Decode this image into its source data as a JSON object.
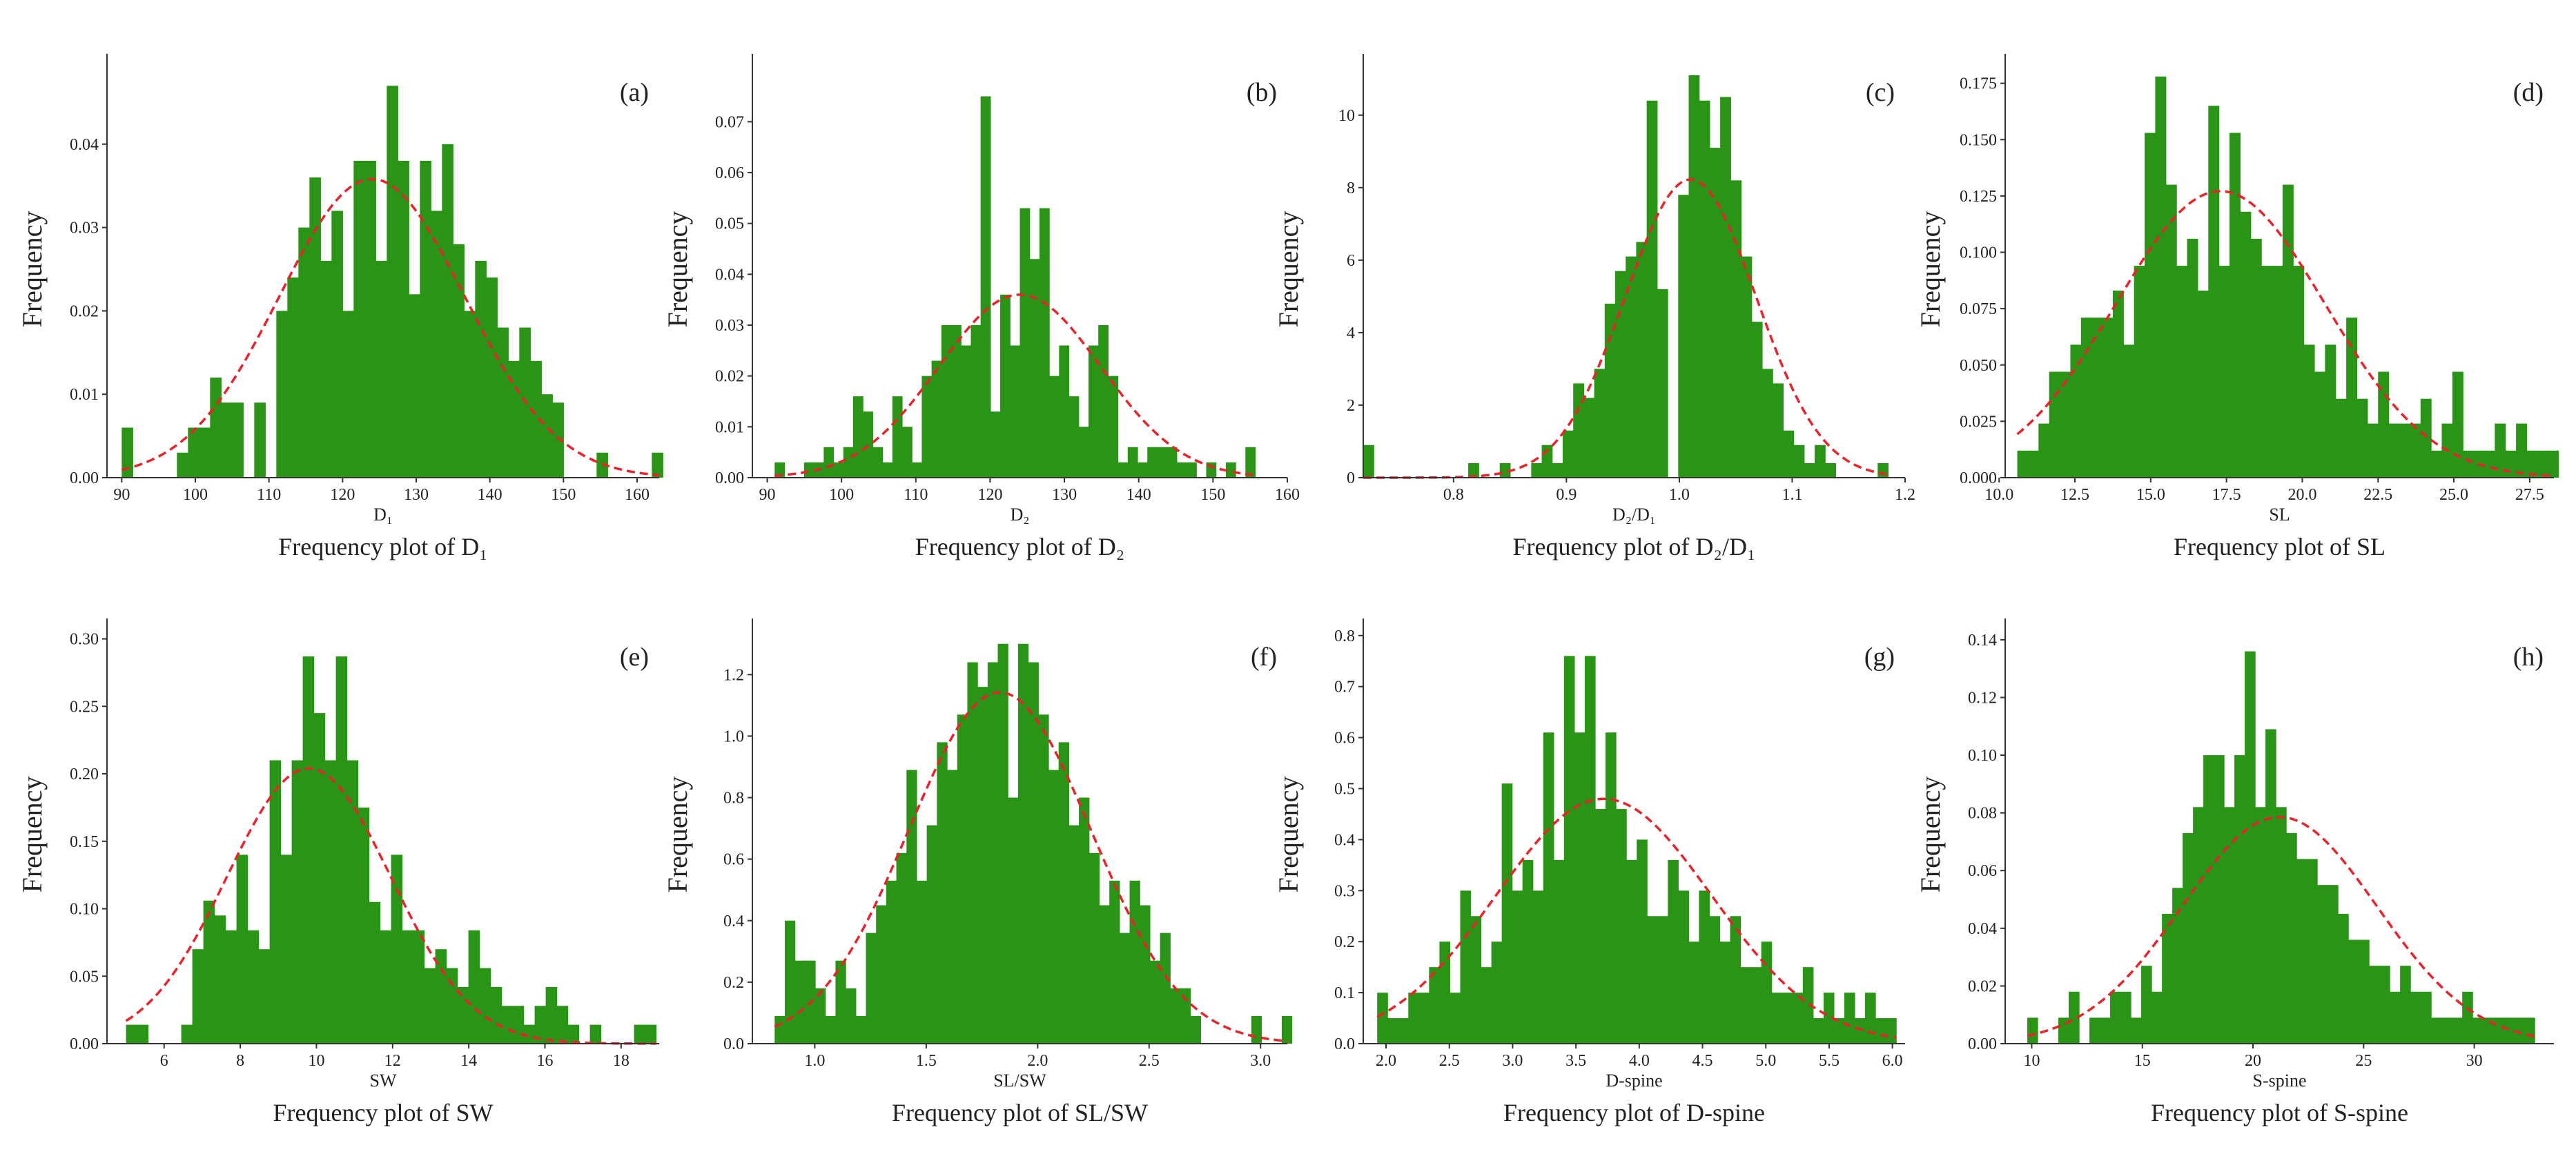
{
  "chart_data": [
    {
      "type": "bar",
      "tag": "(a)",
      "title": "Frequency plot of D₁",
      "xlabel": "D₁",
      "ylabel": "Frequency",
      "xlim": [
        88,
        163
      ],
      "ylim": [
        0,
        0.05
      ],
      "xticks": [
        "90",
        "100",
        "110",
        "120",
        "130",
        "140",
        "150",
        "160"
      ],
      "xtick_values": [
        90,
        100,
        110,
        120,
        130,
        140,
        150,
        160
      ],
      "yticks": [
        "0.00",
        "0.01",
        "0.02",
        "0.03",
        "0.04"
      ],
      "ytick_values": [
        0,
        0.01,
        0.02,
        0.03,
        0.04
      ],
      "bins": {
        "start": 90,
        "width": 1.5
      },
      "values": [
        0.006,
        0,
        0,
        0,
        0,
        0.003,
        0.006,
        0.006,
        0.012,
        0.009,
        0.009,
        0,
        0.009,
        0,
        0.02,
        0.024,
        0.03,
        0.036,
        0.026,
        0.032,
        0.02,
        0.038,
        0.038,
        0.026,
        0.047,
        0.038,
        0.022,
        0.038,
        0.032,
        0.04,
        0.028,
        0.02,
        0.026,
        0.024,
        0.018,
        0.014,
        0.018,
        0.014,
        0.01,
        0.009,
        0,
        0,
        0,
        0.003,
        0,
        0,
        0,
        0,
        0.003
      ],
      "fit": {
        "mu": 124.0,
        "sigma": 12.6
      }
    },
    {
      "type": "bar",
      "tag": "(b)",
      "title": "Frequency plot of D₂",
      "xlabel": "D₂",
      "ylabel": "Frequency",
      "xlim": [
        88,
        160
      ],
      "ylim": [
        0,
        0.082
      ],
      "xticks": [
        "90",
        "100",
        "110",
        "120",
        "130",
        "140",
        "150",
        "160"
      ],
      "xtick_values": [
        90,
        100,
        110,
        120,
        130,
        140,
        150,
        160
      ],
      "yticks": [
        "0.00",
        "0.01",
        "0.02",
        "0.03",
        "0.04",
        "0.05",
        "0.06",
        "0.07"
      ],
      "ytick_values": [
        0,
        0.01,
        0.02,
        0.03,
        0.04,
        0.05,
        0.06,
        0.07
      ],
      "bins": {
        "start": 91,
        "width": 1.32
      },
      "values": [
        0.003,
        0,
        0,
        0.003,
        0.003,
        0.006,
        0.003,
        0.006,
        0.016,
        0.013,
        0.006,
        0.003,
        0.016,
        0.01,
        0.003,
        0.02,
        0.023,
        0.03,
        0.03,
        0.026,
        0.03,
        0.075,
        0.013,
        0.036,
        0.026,
        0.053,
        0.043,
        0.053,
        0.02,
        0.026,
        0.016,
        0.01,
        0.026,
        0.03,
        0.02,
        0.003,
        0.006,
        0.003,
        0.006,
        0.006,
        0.006,
        0.003,
        0.003,
        0,
        0.003,
        0,
        0.003,
        0,
        0.006
      ],
      "fit": {
        "mu": 124.0,
        "sigma": 10.9
      }
    },
    {
      "type": "bar",
      "tag": "(c)",
      "title": "Frequency plot of D₂/D₁",
      "xlabel": "D₂/D₁",
      "ylabel": "Frequency",
      "xlim": [
        0.72,
        1.2
      ],
      "ylim": [
        0,
        11.5
      ],
      "xticks": [
        "0.8",
        "0.9",
        "1.0",
        "1.1",
        "1.2"
      ],
      "xtick_values": [
        0.8,
        0.9,
        1.0,
        1.1,
        1.2
      ],
      "yticks": [
        "0",
        "2",
        "4",
        "6",
        "8",
        "10"
      ],
      "ytick_values": [
        0,
        2,
        4,
        6,
        8,
        10
      ],
      "bins": {
        "start": 0.72,
        "width": 0.0093
      },
      "values": [
        0.9,
        0,
        0,
        0,
        0,
        0,
        0,
        0,
        0,
        0,
        0.4,
        0,
        0,
        0.4,
        0,
        0,
        0.4,
        0.9,
        0.4,
        1.3,
        2.6,
        2.2,
        3.0,
        4.8,
        5.7,
        6.1,
        6.5,
        10.4,
        5.2,
        0,
        7.8,
        11.1,
        10.4,
        9.1,
        10.5,
        8.2,
        6.1,
        4.3,
        3.0,
        2.6,
        1.3,
        0.9,
        0.4,
        0.9,
        0.4,
        0,
        0,
        0,
        0,
        0.4
      ],
      "fit": {
        "mu": 1.01,
        "sigma": 0.058
      }
    },
    {
      "type": "bar",
      "tag": "(d)",
      "title": "Frequency plot of SL",
      "xlabel": "SL",
      "ylabel": "Frequency",
      "xlim": [
        10.2,
        28.3
      ],
      "ylim": [
        0,
        0.185
      ],
      "xticks": [
        "10.0",
        "12.5",
        "15.0",
        "17.5",
        "20.0",
        "22.5",
        "25.0",
        "27.5"
      ],
      "xtick_values": [
        10.0,
        12.5,
        15.0,
        17.5,
        20.0,
        22.5,
        25.0,
        27.5
      ],
      "yticks": [
        "0.000",
        "0.025",
        "0.050",
        "0.075",
        "0.100",
        "0.125",
        "0.150",
        "0.175"
      ],
      "ytick_values": [
        0,
        0.025,
        0.05,
        0.075,
        0.1,
        0.125,
        0.15,
        0.175
      ],
      "bins": {
        "start": 10.6,
        "width": 0.35
      },
      "values": [
        0.012,
        0.012,
        0.024,
        0.047,
        0.047,
        0.059,
        0.071,
        0.071,
        0.071,
        0.083,
        0.059,
        0.094,
        0.153,
        0.178,
        0.13,
        0.094,
        0.106,
        0.083,
        0.165,
        0.094,
        0.153,
        0.118,
        0.106,
        0.094,
        0.094,
        0.13,
        0.094,
        0.059,
        0.047,
        0.059,
        0.035,
        0.071,
        0.035,
        0.024,
        0.047,
        0.024,
        0.024,
        0.024,
        0.035,
        0.012,
        0.024,
        0.047,
        0.012,
        0.012,
        0.012,
        0.024,
        0.012,
        0.024,
        0.012,
        0.012,
        0.012
      ],
      "fit": {
        "mu": 17.3,
        "sigma": 3.45
      }
    },
    {
      "type": "bar",
      "tag": "(e)",
      "title": "Frequency plot of SW",
      "xlabel": "SW",
      "ylabel": "Frequency",
      "xlim": [
        4.5,
        19.0
      ],
      "ylim": [
        0,
        0.31
      ],
      "xticks": [
        "6",
        "8",
        "10",
        "12",
        "14",
        "16",
        "18"
      ],
      "xtick_values": [
        6,
        8,
        10,
        12,
        14,
        16,
        18
      ],
      "yticks": [
        "0.00",
        "0.05",
        "0.10",
        "0.15",
        "0.20",
        "0.25",
        "0.30"
      ],
      "ytick_values": [
        0,
        0.05,
        0.1,
        0.15,
        0.2,
        0.25,
        0.3
      ],
      "bins": {
        "start": 5.0,
        "width": 0.29
      },
      "values": [
        0.014,
        0.014,
        0,
        0,
        0,
        0.014,
        0.07,
        0.106,
        0.095,
        0.084,
        0.14,
        0.084,
        0.07,
        0.21,
        0.14,
        0.21,
        0.287,
        0.245,
        0.21,
        0.287,
        0.21,
        0.175,
        0.105,
        0.084,
        0.14,
        0.084,
        0.084,
        0.056,
        0.07,
        0.056,
        0.042,
        0.084,
        0.056,
        0.042,
        0.028,
        0.028,
        0.014,
        0.028,
        0.042,
        0.028,
        0.014,
        0,
        0.014,
        0,
        0,
        0,
        0.014,
        0.014
      ],
      "fit": {
        "mu": 9.8,
        "sigma": 2.15
      }
    },
    {
      "type": "bar",
      "tag": "(f)",
      "title": "Frequency plot of SL/SW",
      "xlabel": "SL/SW",
      "ylabel": "Frequency",
      "xlim": [
        0.72,
        3.12
      ],
      "ylim": [
        0,
        1.36
      ],
      "xticks": [
        "1.0",
        "1.5",
        "2.0",
        "2.5",
        "3.0"
      ],
      "xtick_values": [
        1.0,
        1.5,
        2.0,
        2.5,
        3.0
      ],
      "yticks": [
        "0.0",
        "0.2",
        "0.4",
        "0.6",
        "0.8",
        "1.0",
        "1.2"
      ],
      "ytick_values": [
        0,
        0.2,
        0.4,
        0.6,
        0.8,
        1.0,
        1.2
      ],
      "bins": {
        "start": 0.82,
        "width": 0.0455
      },
      "values": [
        0.09,
        0.4,
        0.27,
        0.27,
        0.18,
        0.09,
        0.27,
        0.18,
        0.09,
        0.36,
        0.45,
        0.53,
        0.62,
        0.89,
        0.53,
        0.71,
        0.98,
        0.89,
        1.07,
        1.24,
        1.16,
        1.24,
        1.3,
        0.8,
        1.3,
        1.24,
        1.07,
        0.89,
        0.98,
        0.71,
        0.8,
        0.62,
        0.45,
        0.53,
        0.36,
        0.53,
        0.45,
        0.27,
        0.36,
        0.18,
        0.18,
        0.09,
        0,
        0,
        0,
        0,
        0,
        0.09,
        0,
        0,
        0.09
      ],
      "fit": {
        "mu": 1.83,
        "sigma": 0.41
      }
    },
    {
      "type": "bar",
      "tag": "(g)",
      "title": "Frequency plot of D-spine",
      "xlabel": "D-spine",
      "ylabel": "Frequency",
      "xlim": [
        1.82,
        6.1
      ],
      "ylim": [
        0,
        0.82
      ],
      "xticks": [
        "2.0",
        "2.5",
        "3.0",
        "3.5",
        "4.0",
        "4.5",
        "5.0",
        "5.5",
        "6.0"
      ],
      "xtick_values": [
        2.0,
        2.5,
        3.0,
        3.5,
        4.0,
        4.5,
        5.0,
        5.5,
        6.0
      ],
      "yticks": [
        "0.0",
        "0.1",
        "0.2",
        "0.3",
        "0.4",
        "0.5",
        "0.6",
        "0.7",
        "0.8"
      ],
      "ytick_values": [
        0,
        0.1,
        0.2,
        0.3,
        0.4,
        0.5,
        0.6,
        0.7,
        0.8
      ],
      "bins": {
        "start": 1.93,
        "width": 0.082
      },
      "values": [
        0.1,
        0.05,
        0.05,
        0.1,
        0.1,
        0.15,
        0.2,
        0.1,
        0.3,
        0.25,
        0.15,
        0.2,
        0.51,
        0.3,
        0.36,
        0.3,
        0.61,
        0.36,
        0.76,
        0.61,
        0.76,
        0.46,
        0.61,
        0.46,
        0.36,
        0.4,
        0.25,
        0.25,
        0.36,
        0.3,
        0.2,
        0.3,
        0.25,
        0.2,
        0.25,
        0.15,
        0.15,
        0.2,
        0.1,
        0.1,
        0.1,
        0.15,
        0.05,
        0.1,
        0.05,
        0.1,
        0.05,
        0.1,
        0.05,
        0.05
      ],
      "fit": {
        "mu": 3.72,
        "sigma": 0.85
      }
    },
    {
      "type": "bar",
      "tag": "(h)",
      "title": "Frequency plot of S-spine",
      "xlabel": "S-spine",
      "ylabel": "Frequency",
      "xlim": [
        8.8,
        33.6
      ],
      "ylim": [
        0,
        0.145
      ],
      "xticks": [
        "10",
        "15",
        "20",
        "25",
        "30"
      ],
      "xtick_values": [
        10,
        15,
        20,
        25,
        30
      ],
      "yticks": [
        "0.00",
        "0.02",
        "0.04",
        "0.06",
        "0.08",
        "0.10",
        "0.12",
        "0.14"
      ],
      "ytick_values": [
        0,
        0.02,
        0.04,
        0.06,
        0.08,
        0.1,
        0.12,
        0.14
      ],
      "bins": {
        "start": 9.8,
        "width": 0.468
      },
      "values": [
        0.009,
        0,
        0,
        0.009,
        0.018,
        0,
        0.009,
        0.009,
        0.018,
        0.018,
        0.009,
        0.027,
        0.018,
        0.045,
        0.054,
        0.073,
        0.082,
        0.1,
        0.1,
        0.082,
        0.1,
        0.136,
        0.082,
        0.109,
        0.082,
        0.073,
        0.064,
        0.064,
        0.055,
        0.055,
        0.045,
        0.036,
        0.036,
        0.027,
        0.027,
        0.018,
        0.027,
        0.018,
        0.018,
        0.009,
        0.009,
        0.009,
        0.018,
        0.009,
        0.009,
        0.009,
        0.009,
        0.009,
        0.009
      ],
      "fit": {
        "mu": 21.2,
        "sigma": 4.4
      }
    }
  ]
}
